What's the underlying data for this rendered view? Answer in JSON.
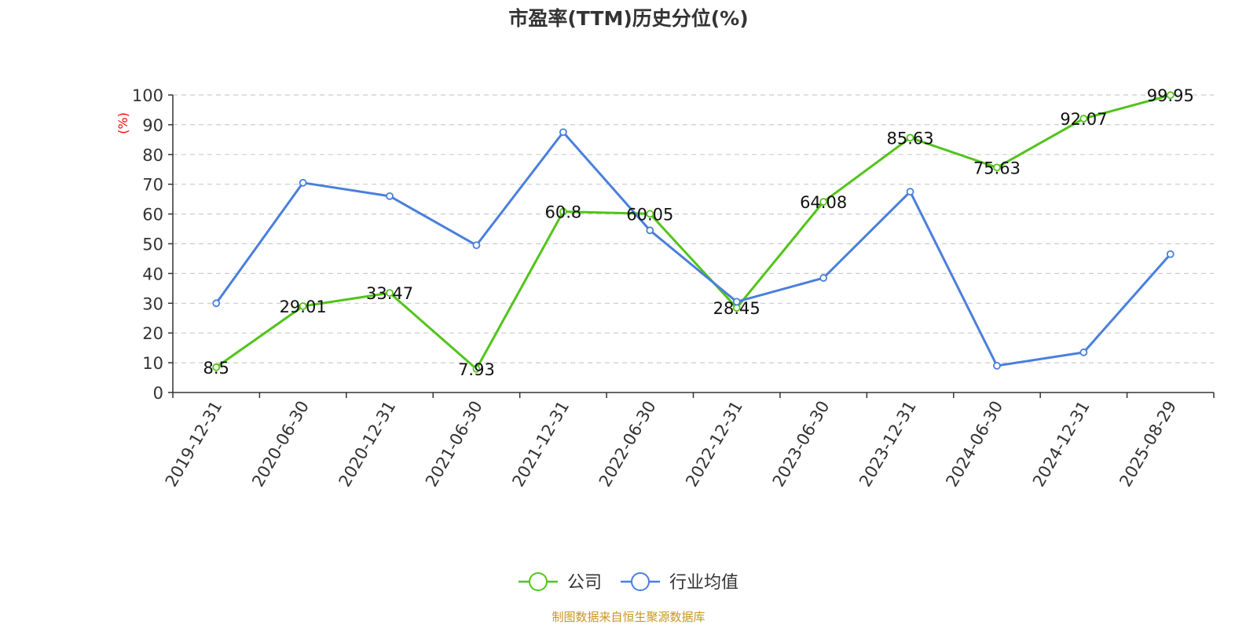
{
  "chart_data": {
    "type": "line",
    "title": "市盈率(TTM)历史分位(%)",
    "ylabel": "(%)",
    "xlabel": "",
    "categories": [
      "2019-12-31",
      "2020-06-30",
      "2020-12-31",
      "2021-06-30",
      "2021-12-31",
      "2022-06-30",
      "2022-12-31",
      "2023-06-30",
      "2023-12-31",
      "2024-06-30",
      "2024-12-31",
      "2025-08-29"
    ],
    "ylim": [
      0,
      100
    ],
    "yticks": [
      0,
      10,
      20,
      30,
      40,
      50,
      60,
      70,
      80,
      90,
      100
    ],
    "grid": true,
    "legend_position": "bottom",
    "series": [
      {
        "name": "公司",
        "color": "#52c41a",
        "show_labels": true,
        "values": [
          8.5,
          29.01,
          33.47,
          7.93,
          60.8,
          60.05,
          28.45,
          64.08,
          85.63,
          75.63,
          92.07,
          99.95
        ]
      },
      {
        "name": "行业均值",
        "color": "#4a7fdc",
        "show_labels": false,
        "values": [
          30,
          70.5,
          66,
          49.5,
          87.5,
          54.5,
          30.5,
          38.5,
          67.5,
          9,
          13.5,
          46.5
        ]
      }
    ],
    "source": "制图数据来自恒生聚源数据库"
  },
  "colors": {
    "axis": "#333333",
    "grid": "#cccccc",
    "ylabel": "#ff0000",
    "source": "#c8961e"
  }
}
